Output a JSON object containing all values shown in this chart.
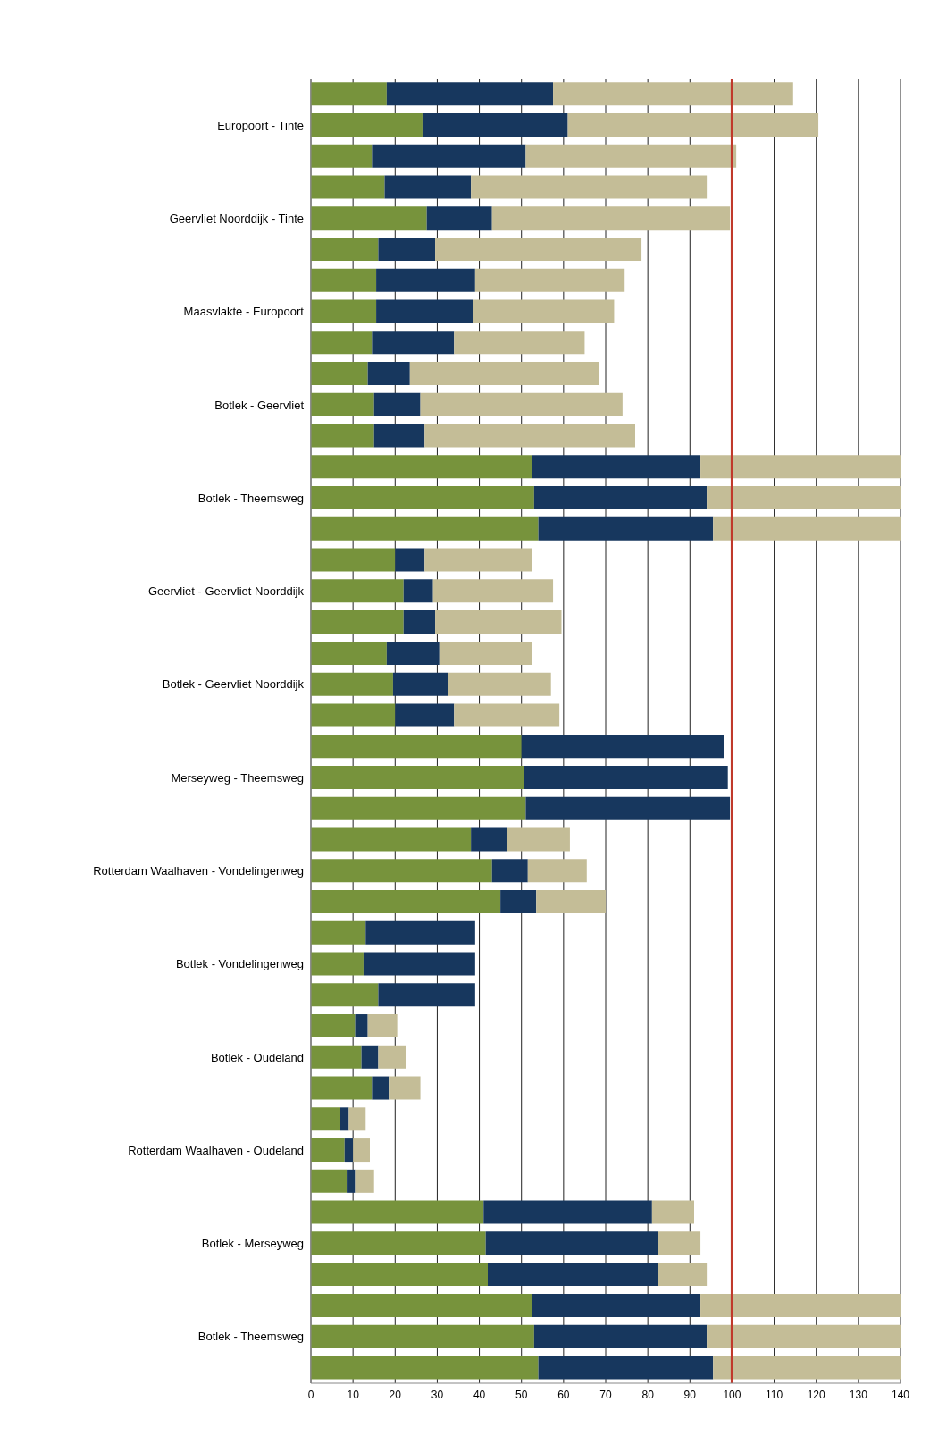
{
  "chart_data": {
    "type": "bar",
    "orientation": "horizontal",
    "stacked": true,
    "categories": [
      null,
      "Europoort - Tinte",
      null,
      null,
      "Geervliet Noorddijk - Tinte",
      null,
      null,
      "Maasvlakte - Europoort",
      null,
      null,
      "Botlek - Geervliet",
      null,
      null,
      "Botlek - Theemsweg",
      null,
      null,
      "Geervliet - Geervliet Noorddijk",
      null,
      null,
      "Botlek - Geervliet Noorddijk",
      null,
      null,
      "Merseyweg - Theemsweg",
      null,
      null,
      "Rotterdam Waalhaven - Vondelingenweg",
      null,
      null,
      "Botlek - Vondelingenweg",
      null,
      null,
      "Botlek - Oudeland",
      null,
      null,
      "Rotterdam Waalhaven - Oudeland",
      null,
      null,
      "Botlek - Merseyweg",
      null,
      null,
      "Botlek - Theemsweg",
      null
    ],
    "series": [
      {
        "color": "#77933c",
        "values": [
          18,
          26.5,
          14.5,
          17.5,
          27.5,
          16,
          15.5,
          15.5,
          14.5,
          13.5,
          15,
          15,
          52.5,
          53,
          54,
          20,
          22,
          22,
          18,
          19.5,
          20,
          50,
          50.5,
          51,
          38,
          43,
          45,
          13,
          12.5,
          16,
          10.5,
          12,
          14.5,
          7,
          8,
          8.5,
          41,
          41.5,
          42,
          52.5,
          53,
          54
        ]
      },
      {
        "color": "#17375e",
        "values": [
          39.5,
          34.5,
          36.5,
          20.5,
          15.5,
          13.5,
          23.5,
          23,
          19.5,
          10,
          11,
          12,
          40,
          41,
          41.5,
          7,
          7,
          7.5,
          12.5,
          13,
          14,
          48,
          48.5,
          48.5,
          8.5,
          8.5,
          8.5,
          26,
          26.5,
          23,
          3,
          4,
          4,
          2,
          2,
          2,
          40,
          41,
          40.5,
          40,
          41,
          41.5
        ]
      },
      {
        "color": "#c4bd97",
        "values": [
          57,
          59.5,
          50,
          56,
          56.5,
          49,
          35.5,
          33.5,
          31,
          45,
          48,
          50,
          47.5,
          46,
          44.5,
          25.5,
          28.5,
          30,
          22,
          24.5,
          25,
          null,
          null,
          null,
          15,
          14,
          16.5,
          null,
          null,
          null,
          7,
          6.5,
          7.5,
          4,
          4,
          4.5,
          10,
          10,
          11.5,
          47.5,
          46,
          44.5
        ]
      }
    ],
    "xlim": [
      0,
      140
    ],
    "xticks": [
      0,
      10,
      20,
      30,
      40,
      50,
      60,
      70,
      80,
      90,
      100,
      110,
      120,
      130,
      140
    ],
    "grid": "x",
    "ref_lines": [
      {
        "axis": "x",
        "value": 100,
        "color": "#c0392b"
      }
    ]
  }
}
